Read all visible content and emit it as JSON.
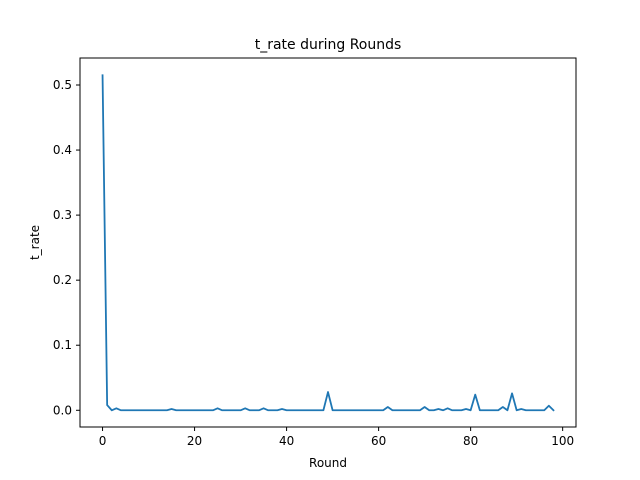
{
  "chart_data": {
    "type": "line",
    "title": "t_rate during Rounds",
    "xlabel": "Round",
    "ylabel": "t_rate",
    "xlim": [
      -4.9,
      102.9
    ],
    "ylim": [
      -0.0257,
      0.5415
    ],
    "xticks": [
      0,
      20,
      40,
      60,
      80,
      100
    ],
    "xtick_labels": [
      "0",
      "20",
      "40",
      "60",
      "80",
      "100"
    ],
    "yticks": [
      0.0,
      0.1,
      0.2,
      0.3,
      0.4,
      0.5
    ],
    "ytick_labels": [
      "0.0",
      "0.1",
      "0.2",
      "0.3",
      "0.4",
      "0.5"
    ],
    "grid": false,
    "series": [
      {
        "color": "#1f77b4",
        "x": [
          0,
          1,
          2,
          3,
          4,
          5,
          6,
          7,
          8,
          9,
          10,
          11,
          12,
          13,
          14,
          15,
          16,
          17,
          18,
          19,
          20,
          21,
          22,
          23,
          24,
          25,
          26,
          27,
          28,
          29,
          30,
          31,
          32,
          33,
          34,
          35,
          36,
          37,
          38,
          39,
          40,
          41,
          42,
          43,
          44,
          45,
          46,
          47,
          48,
          49,
          50,
          51,
          52,
          53,
          54,
          55,
          56,
          57,
          58,
          59,
          60,
          61,
          62,
          63,
          64,
          65,
          66,
          67,
          68,
          69,
          70,
          71,
          72,
          73,
          74,
          75,
          76,
          77,
          78,
          79,
          80,
          81,
          82,
          83,
          84,
          85,
          86,
          87,
          88,
          89,
          90,
          91,
          92,
          93,
          94,
          95,
          96,
          97,
          98
        ],
        "y": [
          0.515,
          0.008,
          0.0,
          0.003,
          0.0,
          0.0,
          0.0,
          0.0,
          0.0,
          0.0,
          0.0,
          0.0,
          0.0,
          0.0,
          0.0,
          0.002,
          0.0,
          0.0,
          0.0,
          0.0,
          0.0,
          0.0,
          0.0,
          0.0,
          0.0,
          0.003,
          0.0,
          0.0,
          0.0,
          0.0,
          0.0,
          0.003,
          0.0,
          0.0,
          0.0,
          0.003,
          0.0,
          0.0,
          0.0,
          0.002,
          0.0,
          0.0,
          0.0,
          0.0,
          0.0,
          0.0,
          0.0,
          0.0,
          0.0,
          0.028,
          0.0,
          0.0,
          0.0,
          0.0,
          0.0,
          0.0,
          0.0,
          0.0,
          0.0,
          0.0,
          0.0,
          0.0,
          0.005,
          0.0,
          0.0,
          0.0,
          0.0,
          0.0,
          0.0,
          0.0,
          0.005,
          0.0,
          0.0,
          0.002,
          0.0,
          0.003,
          0.0,
          0.0,
          0.0,
          0.002,
          0.0,
          0.024,
          0.0,
          0.0,
          0.0,
          0.0,
          0.0,
          0.005,
          0.0,
          0.026,
          0.0,
          0.002,
          0.0,
          0.0,
          0.0,
          0.0,
          0.0,
          0.007,
          0.0
        ]
      }
    ]
  }
}
